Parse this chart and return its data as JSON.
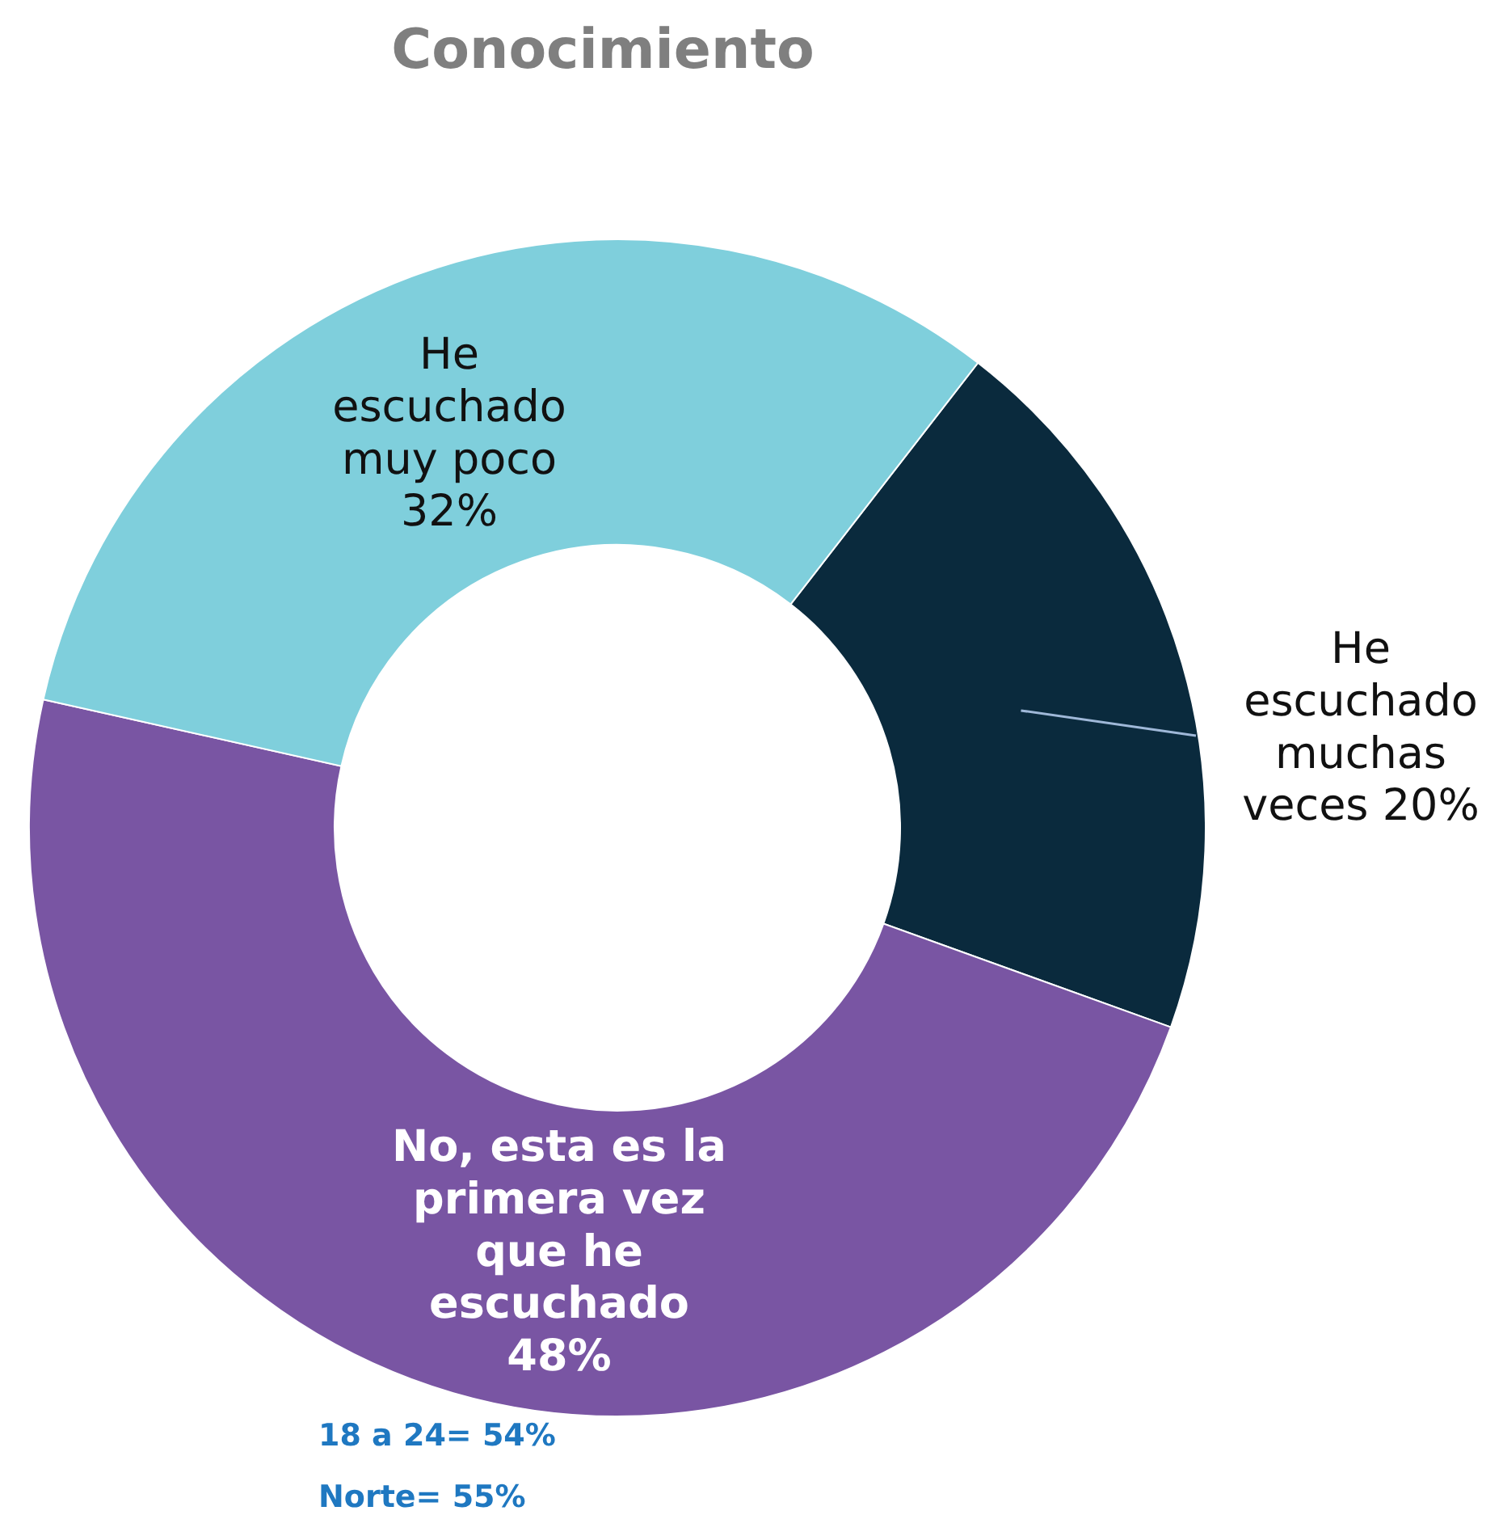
{
  "chart_data": {
    "type": "donut",
    "title": "Conocimiento",
    "categories": [
      "He escuchado muchas veces",
      "No, esta es la primera vez que he escuchado",
      "He escuchado muy poco"
    ],
    "values": [
      20,
      48,
      32
    ],
    "value_labels": [
      "20%",
      "48%",
      "32%"
    ],
    "colors": [
      "#0a2a3d",
      "#7955a3",
      "#7fcfdc"
    ],
    "annotations": [
      "18 a 24= 54%",
      "Norte= 55%"
    ]
  }
}
